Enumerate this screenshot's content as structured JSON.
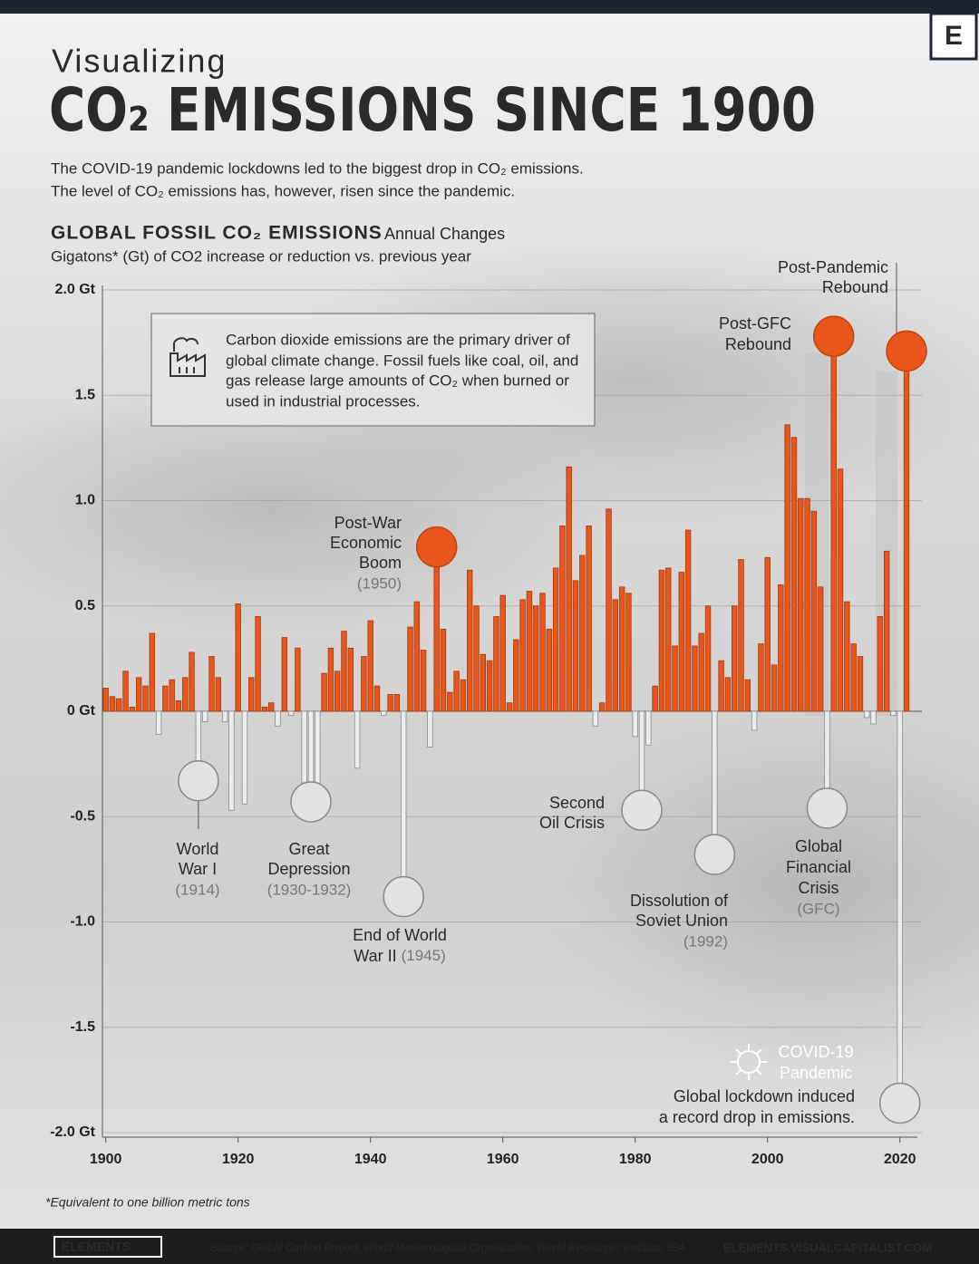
{
  "logo": "E",
  "header": {
    "kicker": "Visualizing",
    "title": "CO₂ EMISSIONS SINCE 1900",
    "subtitle": [
      "The COVID-19 pandemic lockdowns led to the biggest drop in CO₂ emissions.",
      "The level of CO₂ emissions has, however, risen since the pandemic."
    ]
  },
  "info_box": {
    "lines": [
      "Carbon dioxide emissions are the primary driver of",
      "global climate change. Fossil fuels like coal, oil, and",
      "gas release large amounts of CO₂ when burned or",
      "used in industrial processes."
    ]
  },
  "chart_data": {
    "type": "bar",
    "title": "GLOBAL FOSSIL CO₂ EMISSIONS",
    "subtitle": "Annual Changes",
    "y_label": "Gigatons* (Gt) of CO2 increase or reduction vs. previous year",
    "x": [
      1900,
      1901,
      1902,
      1903,
      1904,
      1905,
      1906,
      1907,
      1908,
      1909,
      1910,
      1911,
      1912,
      1913,
      1914,
      1915,
      1916,
      1917,
      1918,
      1919,
      1920,
      1921,
      1922,
      1923,
      1924,
      1925,
      1926,
      1927,
      1928,
      1929,
      1930,
      1931,
      1932,
      1933,
      1934,
      1935,
      1936,
      1937,
      1938,
      1939,
      1940,
      1941,
      1942,
      1943,
      1944,
      1945,
      1946,
      1947,
      1948,
      1949,
      1950,
      1951,
      1952,
      1953,
      1954,
      1955,
      1956,
      1957,
      1958,
      1959,
      1960,
      1961,
      1962,
      1963,
      1964,
      1965,
      1966,
      1967,
      1968,
      1969,
      1970,
      1971,
      1972,
      1973,
      1974,
      1975,
      1976,
      1977,
      1978,
      1979,
      1980,
      1981,
      1982,
      1983,
      1984,
      1985,
      1986,
      1987,
      1988,
      1989,
      1990,
      1991,
      1992,
      1993,
      1994,
      1995,
      1996,
      1997,
      1998,
      1999,
      2000,
      2001,
      2002,
      2003,
      2004,
      2005,
      2006,
      2007,
      2008,
      2009,
      2010,
      2011,
      2012,
      2013,
      2014,
      2015,
      2016,
      2017,
      2018,
      2019,
      2020,
      2021
    ],
    "values": [
      0.11,
      0.07,
      0.06,
      0.19,
      0.02,
      0.16,
      0.12,
      0.37,
      -0.11,
      0.12,
      0.15,
      0.05,
      0.16,
      0.28,
      -0.33,
      -0.05,
      0.26,
      0.16,
      -0.05,
      -0.47,
      0.51,
      -0.44,
      0.16,
      0.45,
      0.02,
      0.04,
      -0.07,
      0.35,
      -0.02,
      0.3,
      -0.34,
      -0.43,
      -0.35,
      0.18,
      0.3,
      0.19,
      0.38,
      0.3,
      -0.27,
      0.26,
      0.43,
      0.12,
      -0.02,
      0.08,
      0.08,
      -0.88,
      0.4,
      0.52,
      0.29,
      -0.17,
      0.78,
      0.39,
      0.09,
      0.19,
      0.15,
      0.67,
      0.5,
      0.27,
      0.24,
      0.45,
      0.55,
      0.04,
      0.34,
      0.53,
      0.57,
      0.5,
      0.56,
      0.39,
      0.68,
      0.88,
      1.16,
      0.62,
      0.74,
      0.88,
      -0.07,
      0.04,
      0.96,
      0.53,
      0.59,
      0.56,
      -0.12,
      -0.47,
      -0.16,
      0.12,
      0.67,
      0.68,
      0.31,
      0.66,
      0.86,
      0.31,
      0.37,
      0.5,
      -0.68,
      0.24,
      0.16,
      0.5,
      0.72,
      0.15,
      -0.09,
      0.32,
      0.73,
      0.22,
      0.6,
      1.36,
      1.3,
      1.01,
      1.01,
      0.95,
      0.59,
      -0.46,
      1.78,
      1.15,
      0.52,
      0.32,
      0.26,
      -0.03,
      -0.06,
      0.45,
      0.76,
      -0.02,
      -1.86,
      1.71
    ],
    "color": "#e8561c",
    "negative_color": "#ececec",
    "xlim": [
      1899.5,
      2022.5
    ],
    "xticks": [
      1900,
      1920,
      1940,
      1960,
      1980,
      2000,
      2020
    ],
    "ylim": [
      -2,
      2
    ],
    "yticks": [
      {
        "value": 2,
        "label": "2.0 Gt"
      },
      1.5,
      {
        "value": 1,
        "label": "1.0"
      },
      0.5,
      {
        "value": 0,
        "label": "0 Gt"
      },
      -0.5,
      {
        "value": -1,
        "label": "-1.0"
      },
      -1.5,
      {
        "value": -2,
        "label": "-2.0 Gt"
      }
    ],
    "grid": true,
    "annotations": [
      {
        "lines": [
          "Post-War",
          "Economic",
          "Boom"
        ],
        "period": "(1950)"
      },
      {
        "lines": [
          "Post-GFC",
          "Rebound"
        ]
      },
      {
        "lines": [
          "Post-Pandemic",
          "Rebound"
        ]
      },
      {
        "lines": [
          "World",
          "War I"
        ],
        "period": "(1914)"
      },
      {
        "lines": [
          "Great",
          "Depression"
        ],
        "period": "(1930-1932)"
      },
      {
        "lines": [
          "End of World",
          "War II"
        ],
        "period": "(1945)"
      },
      {
        "lines": [
          "Second",
          "Oil Crisis"
        ]
      },
      {
        "lines": [
          "Dissolution of",
          "Soviet Union"
        ],
        "period": "(1992)"
      },
      {
        "lines": [
          "Global",
          "Financial",
          "Crisis"
        ],
        "period": "(GFC)"
      },
      {
        "lines": [
          "COVID-19",
          "Pandemic"
        ],
        "note": [
          "Global lockdown induced",
          "a record drop in emissions."
        ]
      }
    ]
  },
  "footnote": "*Equivalent to one billion metric tons",
  "footer": {
    "brand": "ELEMENTS",
    "source": "Source: Global Carbon Project, World Meteorological Organization, World Resources Institute, IEA",
    "url": "ELEMENTS.VISUALCAPITALIST.COM"
  }
}
